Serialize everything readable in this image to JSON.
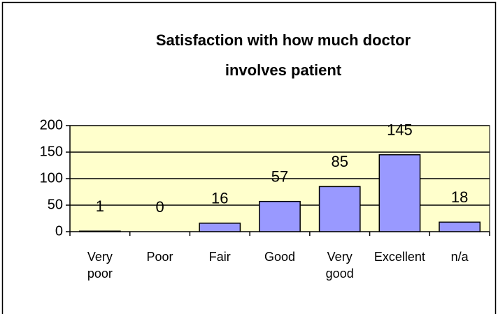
{
  "chart_data": {
    "type": "bar",
    "title": "Satisfaction with how much doctor involves patient",
    "categories": [
      "Very poor",
      "Poor",
      "Fair",
      "Good",
      "Very good",
      "Excellent",
      "n/a"
    ],
    "values": [
      1,
      0,
      16,
      57,
      85,
      145,
      18
    ],
    "color": "#9999ff",
    "plot_background": "#ffffcc",
    "ylim": [
      0,
      200
    ],
    "yticks": [
      0,
      50,
      100,
      150,
      200
    ],
    "grid": true
  }
}
